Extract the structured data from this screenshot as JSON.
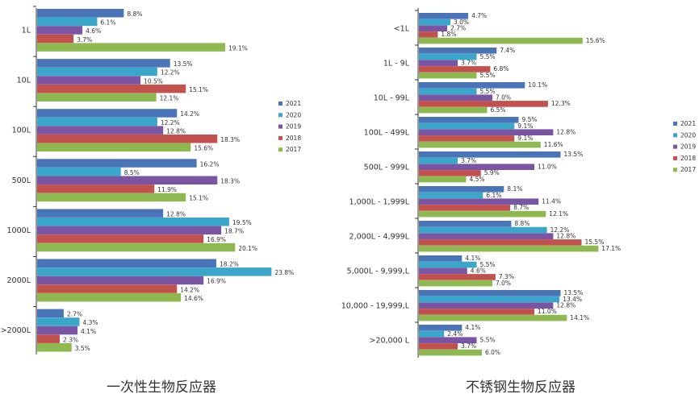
{
  "colors": {
    "2021": "#4a74b8",
    "2020": "#3aa6c9",
    "2019": "#7a55a4",
    "2018": "#c2504d",
    "2017": "#8db950",
    "axis": "#333333",
    "text": "#333333"
  },
  "chart_data": [
    {
      "type": "bar",
      "orientation": "horizontal",
      "title": "一次性生物反应器",
      "categories": [
        "1L",
        "10L",
        "100L",
        "500L",
        "1000L",
        "2000L",
        ">2000L"
      ],
      "series": [
        {
          "name": "2021",
          "values": [
            8.8,
            13.5,
            14.2,
            16.2,
            12.8,
            18.2,
            2.7
          ]
        },
        {
          "name": "2020",
          "values": [
            6.1,
            12.2,
            12.2,
            8.5,
            19.5,
            23.8,
            4.3
          ]
        },
        {
          "name": "2019",
          "values": [
            4.6,
            10.5,
            12.8,
            18.3,
            18.7,
            16.9,
            4.1
          ]
        },
        {
          "name": "2018",
          "values": [
            3.7,
            15.1,
            18.3,
            11.9,
            16.9,
            14.2,
            2.3
          ]
        },
        {
          "name": "2017",
          "values": [
            19.1,
            12.1,
            15.6,
            15.1,
            20.1,
            14.6,
            3.5
          ]
        }
      ],
      "data_labels": [
        [
          "8.8%",
          "13.5%",
          "14.2%",
          "16.2%",
          "12.8%",
          "18.2%",
          "2.7%"
        ],
        [
          "6.1%",
          "12.2%",
          "12.2%",
          "8.5%",
          "19.5%",
          "23.8%",
          "4.3%"
        ],
        [
          "4.6%",
          "10.5%",
          "12.8%",
          "18.3%",
          "18.7%",
          "16.9%",
          "4.1%"
        ],
        [
          "3.7%",
          "15.1%",
          "18.3%",
          "11.9%",
          "16.9%",
          "14.2%",
          "2.3%"
        ],
        [
          "19.1%",
          "12.1%",
          "15.6%",
          "15.1%",
          "20.1%",
          "14.6%",
          "3.5%"
        ]
      ],
      "legend": [
        "2021",
        "2020",
        "2019",
        "2018",
        "2017"
      ],
      "legend_position": "right",
      "grid": false
    },
    {
      "type": "bar",
      "orientation": "horizontal",
      "title": "不锈钢生物反应器",
      "categories": [
        "<1L",
        "1L - 9L",
        "10L - 99L",
        "100L - 499L",
        "500L - 999L",
        "1,000L - 1,999L",
        "2,000L - 4,999L",
        "5,000L - 9,999,L",
        "10,000 - 19,999,L",
        ">20,000 L"
      ],
      "series": [
        {
          "name": "2021",
          "values": [
            4.7,
            7.4,
            10.1,
            9.5,
            13.5,
            8.1,
            8.8,
            4.1,
            13.5,
            4.1
          ]
        },
        {
          "name": "2020",
          "values": [
            3.0,
            5.5,
            5.5,
            9.1,
            3.7,
            6.1,
            12.2,
            5.5,
            13.4,
            2.4
          ]
        },
        {
          "name": "2019",
          "values": [
            2.7,
            3.7,
            7.0,
            12.8,
            11.0,
            11.4,
            12.8,
            4.6,
            12.8,
            5.5
          ]
        },
        {
          "name": "2018",
          "values": [
            1.8,
            6.8,
            12.3,
            9.1,
            5.9,
            8.7,
            15.5,
            7.3,
            11.0,
            3.7
          ]
        },
        {
          "name": "2017",
          "values": [
            15.6,
            5.5,
            6.5,
            11.6,
            4.5,
            12.1,
            17.1,
            7.0,
            14.1,
            6.0
          ]
        }
      ],
      "data_labels": [
        [
          "4.7%",
          "7.4%",
          "10.1%",
          "9.5%",
          "13.5%",
          "8.1%",
          "8.8%",
          "4.1%",
          "13.5%",
          "4.1%"
        ],
        [
          "3.0%",
          "5.5%",
          "5.5%",
          "9.1%",
          "3.7%",
          "6.1%",
          "12.2%",
          "5.5%",
          "13.4%",
          "2.4%"
        ],
        [
          "2.7%",
          "3.7%",
          "7.0%",
          "12.8%",
          "11.0%",
          "11.4%",
          "12.8%",
          "4.6%",
          "12.8%",
          "5.5%"
        ],
        [
          "1.8%",
          "6.8%",
          "12.3%",
          "9.1%",
          "5.9%",
          "8.7%",
          "15.5%",
          "7.3%",
          "11.0%",
          "3.7%"
        ],
        [
          "15.6%",
          "5.5%",
          "6.5%",
          "11.6%",
          "4.5%",
          "12.1%",
          "17.1%",
          "7.0%",
          "14.1%",
          "6.0%"
        ]
      ],
      "legend": [
        "2021",
        "2020",
        "2019",
        "2018",
        "2017"
      ],
      "legend_position": "right",
      "grid": false
    }
  ]
}
